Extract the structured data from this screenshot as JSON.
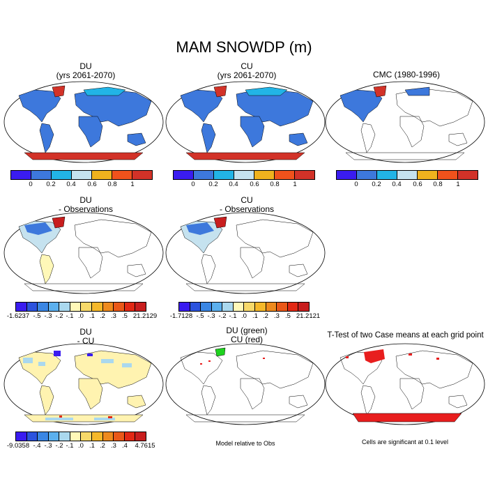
{
  "title": "MAM SNOWDP (m)",
  "palettes": {
    "abs": [
      "#3a1cf0",
      "#3d78dc",
      "#22b4e6",
      "#c5e2ef",
      "#f0b21e",
      "#f0521c",
      "#d23228"
    ],
    "diff": [
      "#3a1cf0",
      "#2c53de",
      "#3a86e4",
      "#5cb0ee",
      "#aad8ee",
      "#fff8b8",
      "#f7d96a",
      "#f5b82a",
      "#ee8a1e",
      "#ea5818",
      "#e22814",
      "#c81e1e"
    ]
  },
  "colors": {
    "ocean": "#ffffff",
    "land_outline": "#000000",
    "abs_land": "#3d78dc",
    "antarctic_abs": "#d23228",
    "diff_na": "#c5e2ef",
    "diff_pale": "#fff3b0",
    "sig": "#e81e1e",
    "green": "#1ed21e"
  },
  "panels": [
    {
      "line1": "DU",
      "line2": "(yrs 2061-2070)",
      "ticks": [
        "0",
        "0.2",
        "0.4",
        "0.6",
        "0.8",
        "1"
      ]
    },
    {
      "line1": "CU",
      "line2": "(yrs 2061-2070)",
      "ticks": [
        "0",
        "0.2",
        "0.4",
        "0.6",
        "0.8",
        "1"
      ]
    },
    {
      "line1": "CMC (1980-1996)",
      "line2": "",
      "ticks": [
        "0",
        "0.2",
        "0.4",
        "0.6",
        "0.8",
        "1"
      ]
    },
    {
      "line1": "DU",
      "line2": "- Observations",
      "ticks": [
        "-1.6237",
        "-.5",
        "-.3",
        "-.2",
        "-.1",
        ".0",
        ".1",
        ".2",
        ".3",
        ".5",
        "21.2129"
      ]
    },
    {
      "line1": "CU",
      "line2": "- Observations",
      "ticks": [
        "-1.7128",
        "-.5",
        "-.3",
        "-.2",
        "-.1",
        ".0",
        ".1",
        ".2",
        ".3",
        ".5",
        "21.2121"
      ]
    },
    {
      "line1": "DU",
      "line2": "- CU",
      "ticks": [
        "-9.0358",
        "-.4",
        "-.3",
        "-.2",
        "-.1",
        ".0",
        ".1",
        ".2",
        ".3",
        ".4",
        "4.7615"
      ]
    },
    {
      "line1": "DU (green)",
      "line2": "CU (red)",
      "note": "Model relative to Obs"
    },
    {
      "line1": "T-Test of two Case means at each grid point",
      "line2": "",
      "note": "Cells are significant at 0.1 level"
    }
  ]
}
